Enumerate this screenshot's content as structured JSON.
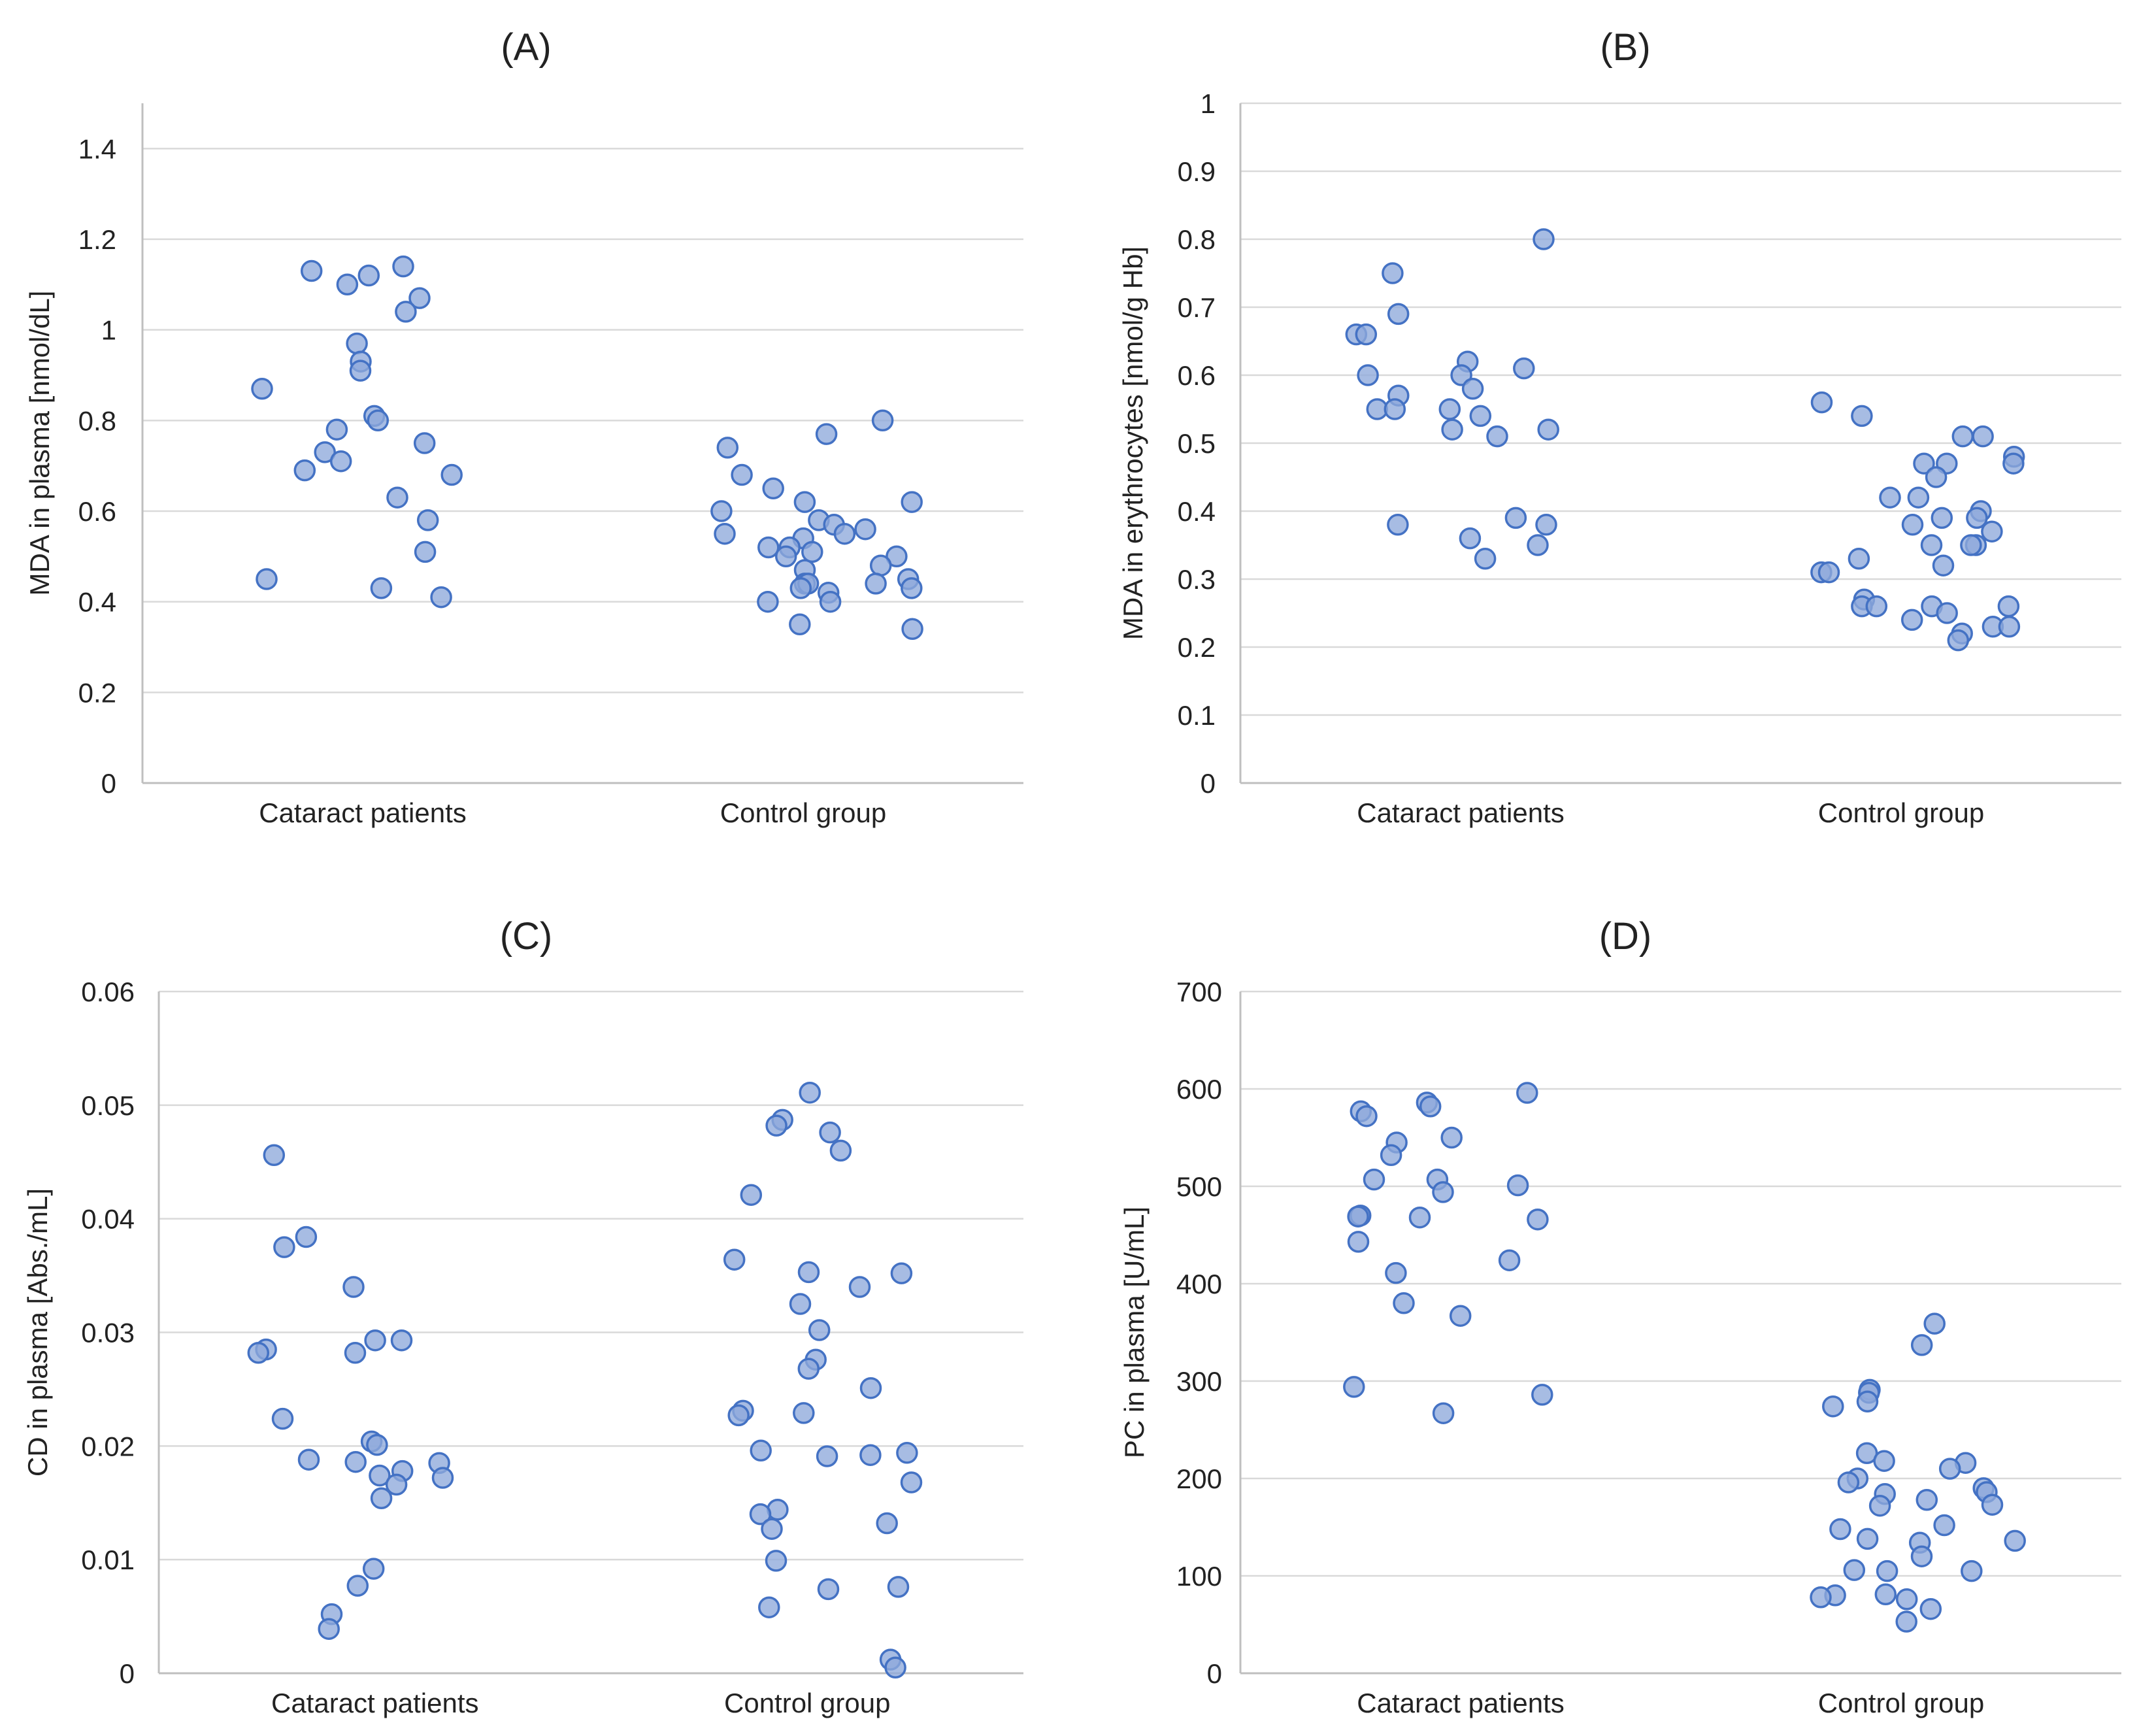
{
  "colors": {
    "marker_fill": "#8ea9db",
    "marker_edge": "#4472c4",
    "grid": "#d9d9d9",
    "axis": "#bfbfbf",
    "text": "#222222"
  },
  "chart_data": [
    {
      "type": "scatter",
      "title": "(A)",
      "ylabel": "MDA in plasma [nmol/dL]",
      "xlabel": "",
      "categories": [
        "Cataract patients",
        "Control group"
      ],
      "ylim": [
        0,
        1.5
      ],
      "yticks": [
        0,
        0.2,
        0.4,
        0.6,
        0.8,
        1,
        1.2,
        1.4
      ],
      "ytick_labels": [
        "0",
        "0.2",
        "0.4",
        "0.6",
        "0.8",
        "1",
        "1.2",
        "1.4"
      ],
      "grid": true,
      "series": [
        {
          "name": "Cataract patients",
          "values": [
            1.14,
            1.12,
            1.1,
            1.13,
            1.07,
            1.04,
            0.97,
            0.93,
            0.91,
            0.87,
            0.81,
            0.8,
            0.78,
            0.75,
            0.73,
            0.71,
            0.69,
            0.68,
            0.63,
            0.58,
            0.51,
            0.45,
            0.43,
            0.41
          ]
        },
        {
          "name": "Control group",
          "values": [
            0.8,
            0.77,
            0.74,
            0.68,
            0.65,
            0.62,
            0.62,
            0.6,
            0.58,
            0.57,
            0.56,
            0.55,
            0.55,
            0.54,
            0.52,
            0.52,
            0.51,
            0.5,
            0.5,
            0.48,
            0.47,
            0.45,
            0.44,
            0.44,
            0.44,
            0.43,
            0.43,
            0.42,
            0.4,
            0.4,
            0.35,
            0.34
          ]
        }
      ]
    },
    {
      "type": "scatter",
      "title": "(B)",
      "ylabel": "MDA in erythrocytes [nmol/g Hb]",
      "xlabel": "",
      "categories": [
        "Cataract patients",
        "Control group"
      ],
      "ylim": [
        0,
        1
      ],
      "yticks": [
        0,
        0.1,
        0.2,
        0.3,
        0.4,
        0.5,
        0.6,
        0.7,
        0.8,
        0.9,
        1
      ],
      "ytick_labels": [
        "0",
        "0.1",
        "0.2",
        "0.3",
        "0.4",
        "0.5",
        "0.6",
        "0.7",
        "0.8",
        "0.9",
        "1"
      ],
      "grid": true,
      "series": [
        {
          "name": "Cataract patients",
          "values": [
            0.8,
            0.75,
            0.69,
            0.66,
            0.66,
            0.62,
            0.61,
            0.6,
            0.6,
            0.58,
            0.57,
            0.55,
            0.55,
            0.55,
            0.54,
            0.52,
            0.52,
            0.51,
            0.39,
            0.38,
            0.38,
            0.36,
            0.35,
            0.33
          ]
        },
        {
          "name": "Control group",
          "values": [
            0.56,
            0.54,
            0.51,
            0.51,
            0.48,
            0.47,
            0.47,
            0.47,
            0.45,
            0.42,
            0.42,
            0.4,
            0.39,
            0.39,
            0.37,
            0.38,
            0.35,
            0.35,
            0.35,
            0.33,
            0.32,
            0.31,
            0.31,
            0.27,
            0.26,
            0.26,
            0.26,
            0.26,
            0.25,
            0.24,
            0.23,
            0.23,
            0.22,
            0.21
          ]
        }
      ]
    },
    {
      "type": "scatter",
      "title": "(C)",
      "ylabel": "CD in plasma [Abs./mL]",
      "xlabel": "",
      "categories": [
        "Cataract patients",
        "Control group"
      ],
      "ylim": [
        0,
        0.06
      ],
      "yticks": [
        0,
        0.01,
        0.02,
        0.03,
        0.04,
        0.05,
        0.06
      ],
      "ytick_labels": [
        "0",
        "0.01",
        "0.02",
        "0.03",
        "0.04",
        "0.05",
        "0.06"
      ],
      "grid": true,
      "series": [
        {
          "name": "Cataract patients",
          "values": [
            0.0456,
            0.0384,
            0.0375,
            0.034,
            0.0293,
            0.0293,
            0.0285,
            0.0282,
            0.0282,
            0.0224,
            0.0204,
            0.0201,
            0.0188,
            0.0186,
            0.0185,
            0.0178,
            0.0174,
            0.0172,
            0.0166,
            0.0154,
            0.0092,
            0.0077,
            0.0052,
            0.0039
          ]
        },
        {
          "name": "Control group",
          "values": [
            0.0511,
            0.0487,
            0.0482,
            0.0476,
            0.046,
            0.0421,
            0.0364,
            0.0353,
            0.0352,
            0.034,
            0.0325,
            0.0302,
            0.0276,
            0.0268,
            0.0251,
            0.0231,
            0.0229,
            0.0227,
            0.0196,
            0.0194,
            0.0192,
            0.0191,
            0.0168,
            0.0144,
            0.014,
            0.0132,
            0.0127,
            0.0099,
            0.0076,
            0.0074,
            0.0058,
            0.0012,
            0.0005
          ]
        }
      ]
    },
    {
      "type": "scatter",
      "title": "(D)",
      "ylabel": "PC in plasma [U/mL]",
      "xlabel": "",
      "categories": [
        "Cataract patients",
        "Control group"
      ],
      "ylim": [
        0,
        700
      ],
      "yticks": [
        0,
        100,
        200,
        300,
        400,
        500,
        600,
        700
      ],
      "ytick_labels": [
        "0",
        "100",
        "200",
        "300",
        "400",
        "500",
        "600",
        "700"
      ],
      "grid": true,
      "series": [
        {
          "name": "Cataract patients",
          "values": [
            596,
            586,
            582,
            577,
            572,
            550,
            545,
            532,
            507,
            507,
            501,
            494,
            470,
            469,
            468,
            466,
            443,
            424,
            411,
            380,
            367,
            294,
            286,
            267
          ]
        },
        {
          "name": "Control group",
          "values": [
            359,
            337,
            291,
            288,
            279,
            274,
            226,
            218,
            216,
            210,
            200,
            196,
            190,
            186,
            184,
            178,
            173,
            172,
            152,
            148,
            138,
            136,
            134,
            120,
            106,
            105,
            105,
            81,
            80,
            78,
            76,
            66,
            53
          ]
        }
      ]
    }
  ]
}
